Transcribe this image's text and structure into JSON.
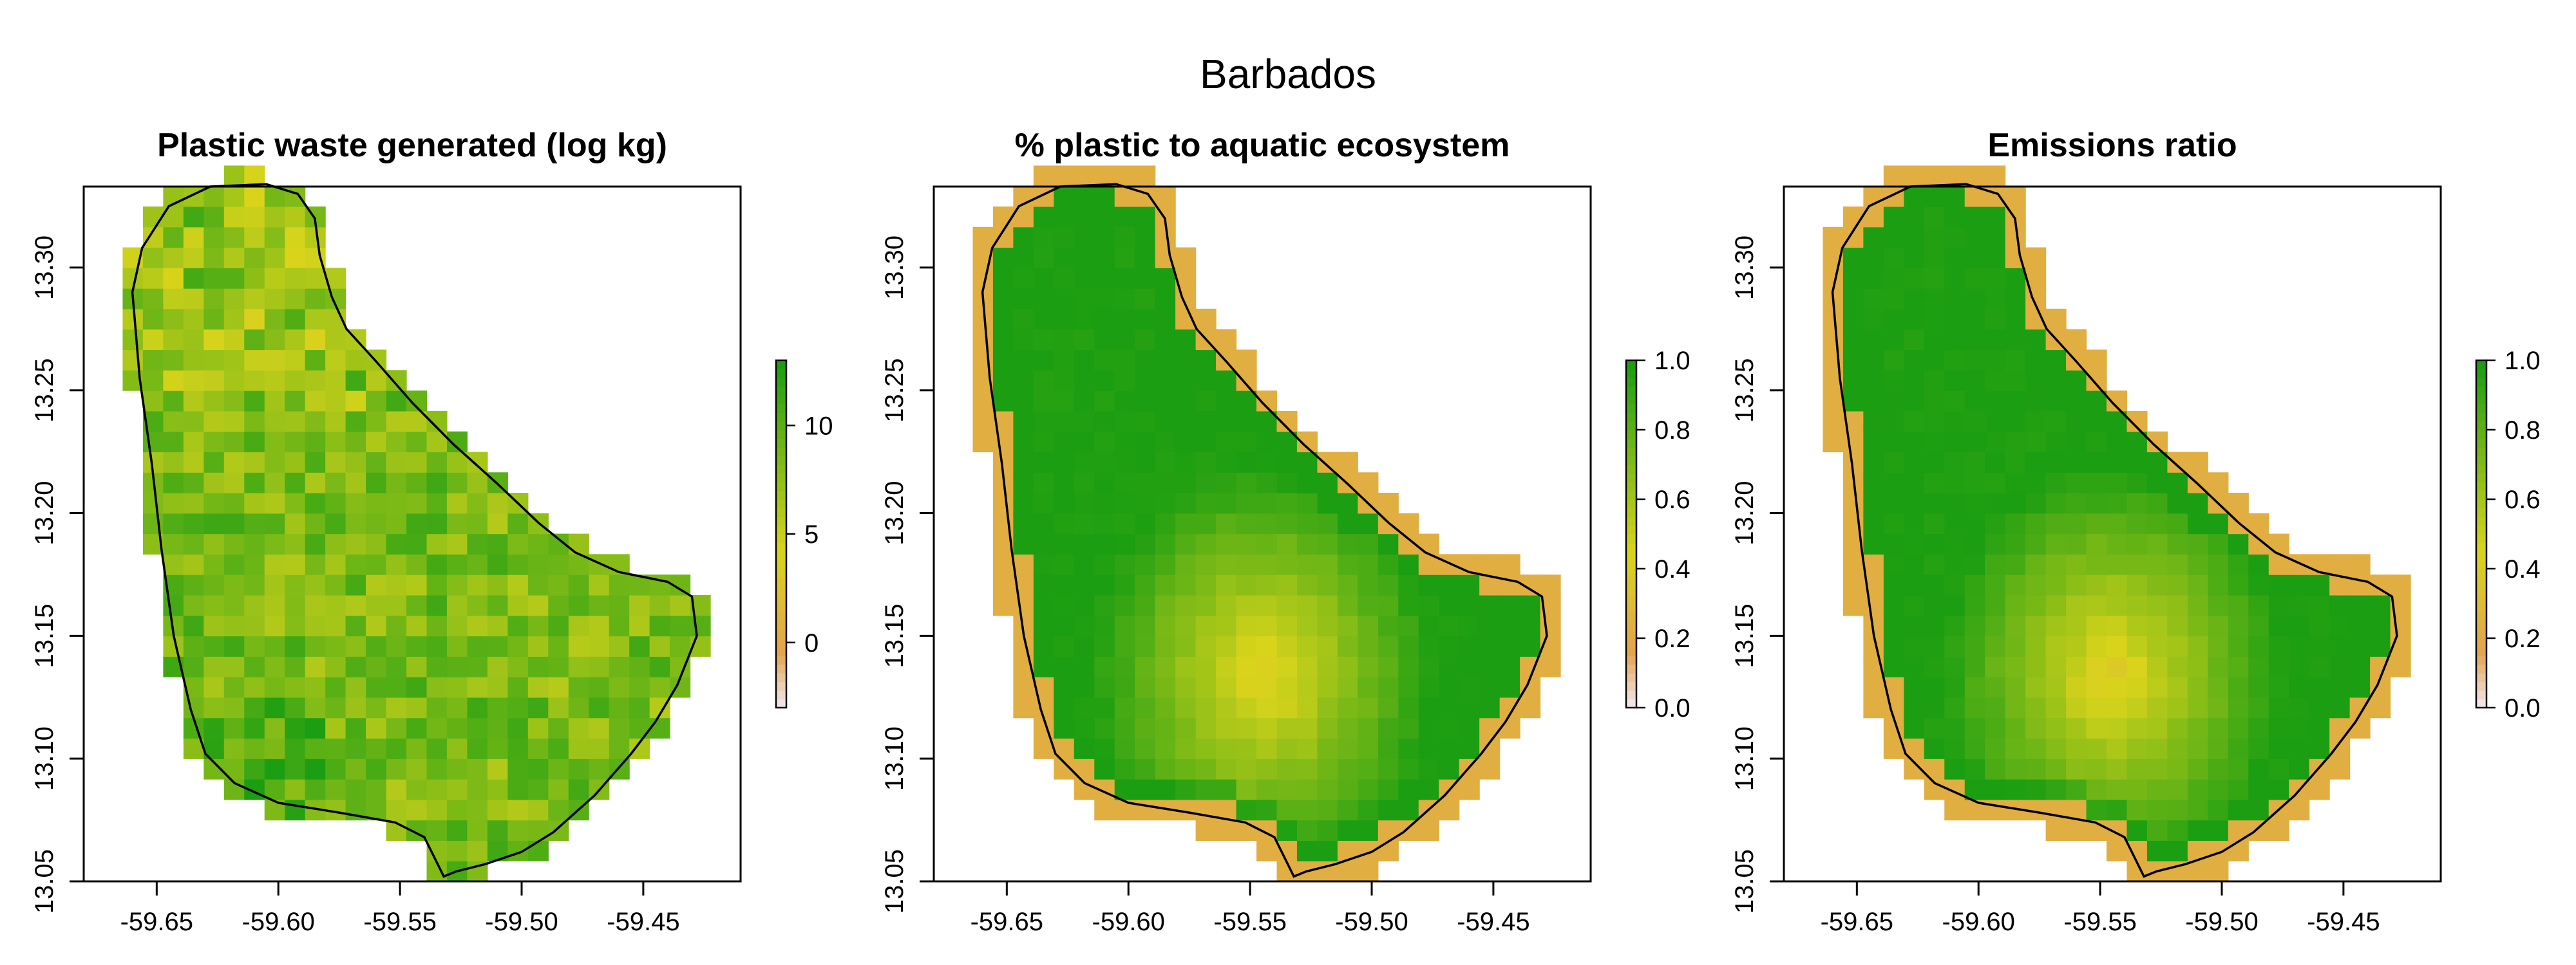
{
  "figure": {
    "title": "Barbados",
    "panels": [
      {
        "title": "Plastic waste generated (log kg)",
        "legend_ticks": [
          "0",
          "5",
          "10"
        ],
        "legend_values": [
          0,
          5,
          10
        ],
        "legend_range": [
          -3,
          13
        ],
        "scheme": "waste"
      },
      {
        "title": "% plastic to aquatic ecosystem",
        "legend_ticks": [
          "0.0",
          "0.2",
          "0.4",
          "0.6",
          "0.8",
          "1.0"
        ],
        "legend_values": [
          0,
          0.2,
          0.4,
          0.6,
          0.8,
          1.0
        ],
        "legend_range": [
          0,
          1
        ],
        "scheme": "ratio"
      },
      {
        "title": "Emissions ratio",
        "legend_ticks": [
          "0.0",
          "0.2",
          "0.4",
          "0.6",
          "0.8",
          "1.0"
        ],
        "legend_values": [
          0,
          0.2,
          0.4,
          0.6,
          0.8,
          1.0
        ],
        "legend_range": [
          0,
          1
        ],
        "scheme": "ratio"
      }
    ],
    "x_ticks": [
      "-59.65",
      "-59.60",
      "-59.55",
      "-59.50",
      "-59.45"
    ],
    "x_tick_values": [
      -59.65,
      -59.6,
      -59.55,
      -59.5,
      -59.45
    ],
    "y_ticks": [
      "13.05",
      "13.10",
      "13.15",
      "13.20",
      "13.25",
      "13.30"
    ],
    "y_tick_values": [
      13.05,
      13.1,
      13.15,
      13.2,
      13.25,
      13.3
    ],
    "x_range": [
      -59.68,
      -59.41
    ],
    "y_range": [
      13.05,
      13.333
    ],
    "colors": {
      "high": "#1b9e12",
      "mid": "#d9d41b",
      "low": "#e3a34e",
      "floor": "#f2e4e6"
    }
  }
}
